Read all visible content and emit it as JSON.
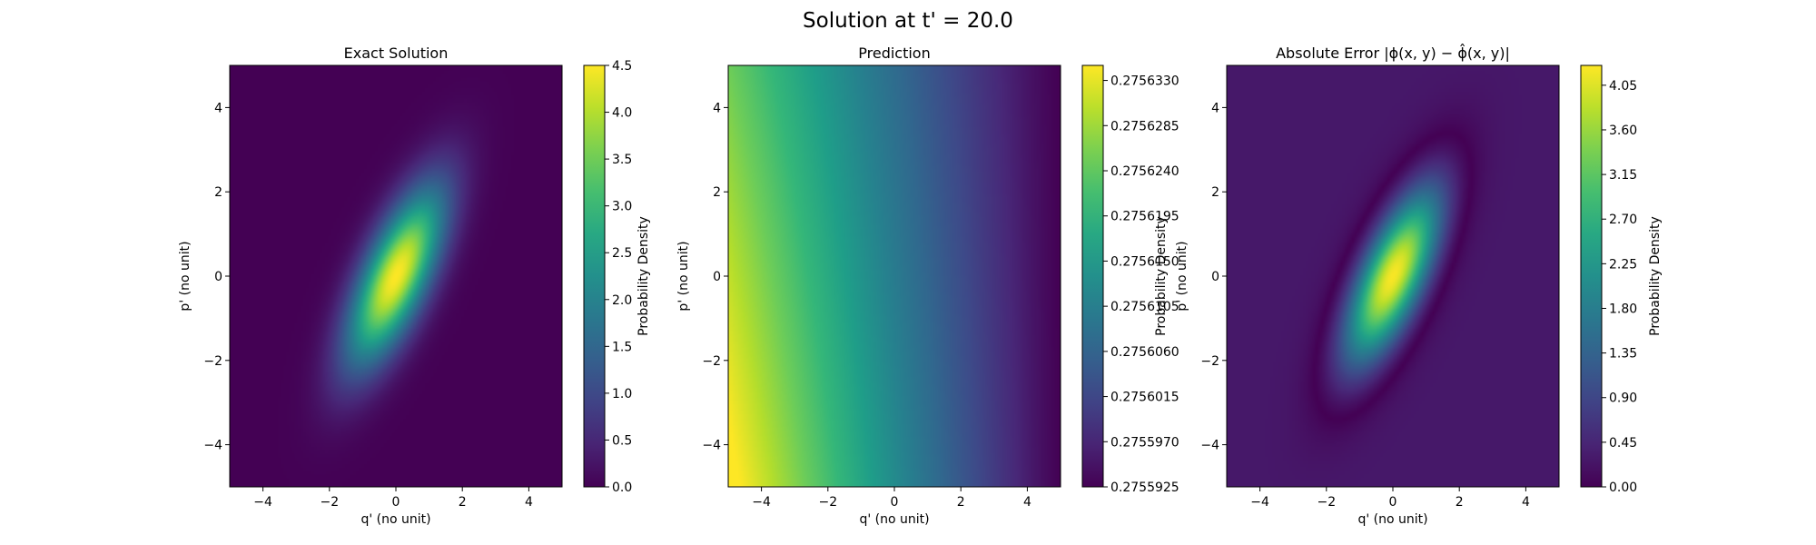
{
  "figure": {
    "suptitle": "Solution at t' = 20.0"
  },
  "chart_data": [
    {
      "type": "heatmap",
      "title": "Exact Solution",
      "xlabel": "q' (no unit)",
      "ylabel": "p' (no unit)",
      "xlim": [
        -5,
        5
      ],
      "ylim": [
        -5,
        5
      ],
      "x_ticks": [
        -4,
        -2,
        0,
        2,
        4
      ],
      "y_ticks": [
        -4,
        -2,
        0,
        2,
        4
      ],
      "x_tick_labels": [
        "−4",
        "−2",
        "0",
        "2",
        "4"
      ],
      "y_tick_labels": [
        "−4",
        "−2",
        "0",
        "2",
        "4"
      ],
      "colormap": "viridis",
      "field": {
        "kind": "gaussian",
        "peak": 4.5,
        "sigma_x": 1.0,
        "sigma_y": 1.44,
        "rho": 0.7,
        "offset": 0
      },
      "colorbar": {
        "label": "Probability Density",
        "range": [
          0.0,
          4.5
        ],
        "ticks": [
          0.0,
          0.5,
          1.0,
          1.5,
          2.0,
          2.5,
          3.0,
          3.5,
          4.0,
          4.5
        ],
        "tick_labels": [
          "0.0",
          "0.5",
          "1.0",
          "1.5",
          "2.0",
          "2.5",
          "3.0",
          "3.5",
          "4.0",
          "4.5"
        ]
      }
    },
    {
      "type": "heatmap",
      "title": "Prediction",
      "xlabel": "q' (no unit)",
      "ylabel": "p' (no unit)",
      "xlim": [
        -5,
        5
      ],
      "ylim": [
        -5,
        5
      ],
      "x_ticks": [
        -4,
        -2,
        0,
        2,
        4
      ],
      "y_ticks": [
        -4,
        -2,
        0,
        2,
        4
      ],
      "x_tick_labels": [
        "−4",
        "−2",
        "0",
        "2",
        "4"
      ],
      "y_tick_labels": [
        "−4",
        "−2",
        "0",
        "2",
        "4"
      ],
      "colormap": "viridis",
      "field": {
        "kind": "gradient",
        "min": 0.2755925,
        "max": 0.2756345
      },
      "colorbar": {
        "label": "Probability Density",
        "range": [
          0.2755925,
          0.2756345
        ],
        "ticks": [
          0.2755925,
          0.275597,
          0.2756015,
          0.275606,
          0.2756105,
          0.275615,
          0.2756195,
          0.275624,
          0.2756285,
          0.275633
        ],
        "tick_labels": [
          "0.2755925",
          "0.2755970",
          "0.2756015",
          "0.2756060",
          "0.2756105",
          "0.2756150",
          "0.2756195",
          "0.2756240",
          "0.2756285",
          "0.2756330"
        ]
      }
    },
    {
      "type": "heatmap",
      "title": "Absolute Error",
      "title_math": "|ϕ(x, y) − ϕ̂(x, y)|",
      "xlabel": "q' (no unit)",
      "ylabel": "p' (no unit)",
      "xlim": [
        -5,
        5
      ],
      "ylim": [
        -5,
        5
      ],
      "x_ticks": [
        -4,
        -2,
        0,
        2,
        4
      ],
      "y_ticks": [
        -4,
        -2,
        0,
        2,
        4
      ],
      "x_tick_labels": [
        "−4",
        "−2",
        "0",
        "2",
        "4"
      ],
      "y_tick_labels": [
        "−4",
        "−2",
        "0",
        "2",
        "4"
      ],
      "colormap": "viridis",
      "field": {
        "kind": "abs_gaussian_minus",
        "peak": 4.5,
        "sigma_x": 1.0,
        "sigma_y": 1.44,
        "rho": 0.7,
        "offset": 0.2756
      },
      "colorbar": {
        "label": "Probability Density",
        "range": [
          0.0,
          4.25
        ],
        "ticks": [
          0.0,
          0.45,
          0.9,
          1.35,
          1.8,
          2.25,
          2.7,
          3.15,
          3.6,
          4.05
        ],
        "tick_labels": [
          "0.00",
          "0.45",
          "0.90",
          "1.35",
          "1.80",
          "2.25",
          "2.70",
          "3.15",
          "3.60",
          "4.05"
        ]
      }
    }
  ]
}
